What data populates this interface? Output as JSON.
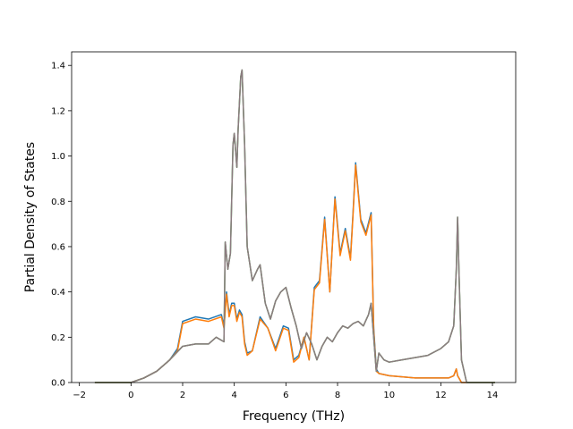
{
  "chart_data": {
    "type": "line",
    "title": "",
    "xlabel": "Frequency (THz)",
    "ylabel": "Partial Density of States",
    "xlim": [
      -2.3,
      14.9
    ],
    "ylim": [
      0.0,
      1.46
    ],
    "xticks": [
      -2,
      0,
      2,
      4,
      6,
      8,
      10,
      12,
      14
    ],
    "xtick_labels": [
      "−2",
      "0",
      "2",
      "4",
      "6",
      "8",
      "10",
      "12",
      "14"
    ],
    "yticks": [
      0.0,
      0.2,
      0.4,
      0.6,
      0.8,
      1.0,
      1.2,
      1.4
    ],
    "ytick_labels": [
      "0.0",
      "0.2",
      "0.4",
      "0.6",
      "0.8",
      "1.0",
      "1.2",
      "1.4"
    ],
    "grid": false,
    "legend": "none",
    "series": [
      {
        "color": "#1f77b4",
        "x": [
          -1.4,
          0.0,
          0.5,
          1.0,
          1.5,
          1.8,
          2.0,
          2.5,
          3.0,
          3.5,
          3.6,
          3.7,
          3.8,
          3.9,
          4.0,
          4.1,
          4.2,
          4.3,
          4.4,
          4.5,
          4.7,
          5.0,
          5.3,
          5.6,
          5.9,
          6.1,
          6.3,
          6.5,
          6.7,
          6.9,
          7.1,
          7.3,
          7.5,
          7.7,
          7.9,
          8.1,
          8.3,
          8.5,
          8.6,
          8.7,
          8.9,
          9.1,
          9.3,
          9.4,
          9.5,
          9.6,
          10.0,
          10.5,
          11.0,
          11.5,
          12.0,
          12.3,
          12.5,
          12.6,
          12.65,
          12.7,
          12.8,
          13.0,
          14.1
        ],
        "y": [
          0.0,
          0.0,
          0.02,
          0.05,
          0.1,
          0.15,
          0.27,
          0.29,
          0.28,
          0.3,
          0.25,
          0.4,
          0.3,
          0.35,
          0.35,
          0.28,
          0.32,
          0.3,
          0.18,
          0.13,
          0.14,
          0.29,
          0.24,
          0.15,
          0.25,
          0.24,
          0.1,
          0.12,
          0.2,
          0.1,
          0.42,
          0.45,
          0.73,
          0.4,
          0.82,
          0.57,
          0.68,
          0.55,
          0.75,
          0.97,
          0.72,
          0.66,
          0.75,
          0.24,
          0.06,
          0.04,
          0.03,
          0.025,
          0.02,
          0.02,
          0.02,
          0.02,
          0.03,
          0.06,
          0.03,
          0.02,
          0.0,
          0.0,
          0.0
        ]
      },
      {
        "color": "#ff7f0e",
        "x": [
          -1.4,
          0.0,
          0.5,
          1.0,
          1.5,
          1.8,
          2.0,
          2.5,
          3.0,
          3.5,
          3.6,
          3.7,
          3.8,
          3.9,
          4.0,
          4.1,
          4.2,
          4.3,
          4.4,
          4.5,
          4.7,
          5.0,
          5.3,
          5.6,
          5.9,
          6.1,
          6.3,
          6.5,
          6.7,
          6.9,
          7.1,
          7.3,
          7.5,
          7.7,
          7.9,
          8.1,
          8.3,
          8.5,
          8.6,
          8.7,
          8.9,
          9.1,
          9.3,
          9.4,
          9.5,
          9.6,
          10.0,
          10.5,
          11.0,
          11.5,
          12.0,
          12.3,
          12.5,
          12.6,
          12.65,
          12.7,
          12.8,
          13.0,
          14.1
        ],
        "y": [
          0.0,
          0.0,
          0.02,
          0.05,
          0.1,
          0.14,
          0.26,
          0.28,
          0.27,
          0.29,
          0.24,
          0.39,
          0.29,
          0.34,
          0.34,
          0.27,
          0.31,
          0.29,
          0.17,
          0.12,
          0.14,
          0.28,
          0.24,
          0.14,
          0.24,
          0.23,
          0.09,
          0.11,
          0.2,
          0.1,
          0.41,
          0.44,
          0.72,
          0.4,
          0.81,
          0.56,
          0.67,
          0.54,
          0.74,
          0.96,
          0.71,
          0.65,
          0.74,
          0.23,
          0.05,
          0.04,
          0.03,
          0.025,
          0.02,
          0.02,
          0.02,
          0.02,
          0.03,
          0.06,
          0.03,
          0.02,
          0.0,
          0.0,
          0.0
        ]
      },
      {
        "color": "#2ca02c",
        "x": [
          -1.4,
          0.0,
          0.5,
          1.0,
          1.5,
          2.0,
          2.5,
          3.0,
          3.3,
          3.6,
          3.65,
          3.75,
          3.85,
          3.95,
          4.0,
          4.1,
          4.15,
          4.25,
          4.3,
          4.4,
          4.5,
          4.7,
          4.9,
          5.0,
          5.2,
          5.4,
          5.6,
          5.8,
          6.0,
          6.2,
          6.4,
          6.6,
          6.8,
          7.0,
          7.2,
          7.4,
          7.6,
          7.8,
          8.0,
          8.2,
          8.4,
          8.6,
          8.8,
          9.0,
          9.2,
          9.3,
          9.4,
          9.5,
          9.6,
          9.8,
          10.0,
          10.5,
          11.0,
          11.5,
          12.0,
          12.3,
          12.5,
          12.6,
          12.65,
          12.7,
          12.8,
          13.0,
          14.1
        ],
        "y": [
          0.0,
          0.0,
          0.02,
          0.05,
          0.1,
          0.16,
          0.17,
          0.17,
          0.2,
          0.18,
          0.62,
          0.5,
          0.57,
          1.05,
          1.1,
          0.95,
          1.12,
          1.35,
          1.38,
          1.05,
          0.6,
          0.45,
          0.5,
          0.52,
          0.35,
          0.28,
          0.36,
          0.4,
          0.42,
          0.33,
          0.25,
          0.15,
          0.22,
          0.17,
          0.1,
          0.16,
          0.2,
          0.18,
          0.22,
          0.25,
          0.24,
          0.26,
          0.27,
          0.25,
          0.3,
          0.35,
          0.2,
          0.05,
          0.13,
          0.1,
          0.09,
          0.1,
          0.11,
          0.12,
          0.15,
          0.18,
          0.25,
          0.5,
          0.73,
          0.5,
          0.1,
          0.0,
          0.0
        ]
      },
      {
        "color": "#8c7b80",
        "x": [
          -1.4,
          0.0,
          0.5,
          1.0,
          1.5,
          2.0,
          2.5,
          3.0,
          3.3,
          3.6,
          3.65,
          3.75,
          3.85,
          3.95,
          4.0,
          4.1,
          4.15,
          4.25,
          4.3,
          4.4,
          4.5,
          4.7,
          4.9,
          5.0,
          5.2,
          5.4,
          5.6,
          5.8,
          6.0,
          6.2,
          6.4,
          6.6,
          6.8,
          7.0,
          7.2,
          7.4,
          7.6,
          7.8,
          8.0,
          8.2,
          8.4,
          8.6,
          8.8,
          9.0,
          9.2,
          9.3,
          9.4,
          9.5,
          9.6,
          9.8,
          10.0,
          10.5,
          11.0,
          11.5,
          12.0,
          12.3,
          12.5,
          12.6,
          12.65,
          12.7,
          12.8,
          13.0,
          14.1
        ],
        "y": [
          0.0,
          0.0,
          0.02,
          0.05,
          0.1,
          0.16,
          0.17,
          0.17,
          0.2,
          0.18,
          0.62,
          0.5,
          0.57,
          1.05,
          1.1,
          0.95,
          1.12,
          1.35,
          1.38,
          1.05,
          0.6,
          0.45,
          0.5,
          0.52,
          0.35,
          0.28,
          0.36,
          0.4,
          0.42,
          0.33,
          0.25,
          0.15,
          0.22,
          0.17,
          0.1,
          0.16,
          0.2,
          0.18,
          0.22,
          0.25,
          0.24,
          0.26,
          0.27,
          0.25,
          0.3,
          0.35,
          0.2,
          0.05,
          0.13,
          0.1,
          0.09,
          0.1,
          0.11,
          0.12,
          0.15,
          0.18,
          0.25,
          0.5,
          0.73,
          0.5,
          0.1,
          0.0,
          0.0
        ]
      }
    ]
  }
}
